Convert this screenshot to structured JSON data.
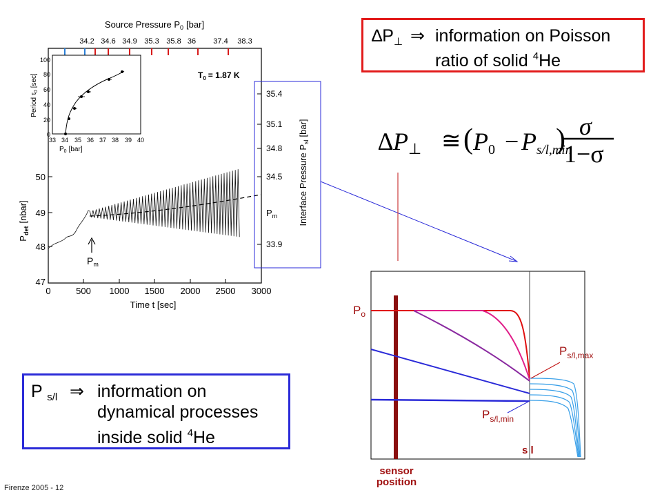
{
  "plot": {
    "top_title": "Source Pressure P",
    "top_title_sub": "0",
    "top_title_unit": "[bar]",
    "top_ticks": [
      "34.2",
      "34.6",
      "34.9",
      "35.3",
      "35.8",
      "36",
      "37.4",
      "38.3"
    ],
    "temperature_label": "T",
    "temperature_sub": "0",
    "temperature_value": "= 1.87 K",
    "y_label": "P",
    "y_label_sub": "det",
    "y_label_unit": "[nbar]",
    "y_ticks": [
      "50",
      "49",
      "48",
      "47"
    ],
    "x_label": "Time t  [sec]",
    "x_ticks": [
      "0",
      "500",
      "1000",
      "1500",
      "2000",
      "2500",
      "3000"
    ],
    "right_label": "Interface Pressure P",
    "right_label_sub": "sl",
    "right_label_unit": "[bar]",
    "right_ticks": [
      "35.4",
      "35.1",
      "34.8",
      "34.5",
      "33.9"
    ],
    "right_pm": "P",
    "right_pm_sub": "m",
    "arrow_label": "P",
    "arrow_label_sub": "m"
  },
  "inset": {
    "y_label": "Period  τ",
    "y_label_sub": "0",
    "y_label_unit": "[sec]",
    "y_ticks": [
      "100",
      "80",
      "60",
      "40",
      "20",
      "0"
    ],
    "x_label": "P",
    "x_label_sub": "0",
    "x_label_unit": "[bar]",
    "x_ticks": [
      "33",
      "34",
      "35",
      "36",
      "37",
      "38",
      "39",
      "40"
    ]
  },
  "top_box": {
    "symbol": "∆P",
    "symbol_sub": "⊥",
    "arrow": "⇒",
    "line1": "information on Poisson",
    "line2": "ratio of solid",
    "sup": "4",
    "tail": "He"
  },
  "bottom_box": {
    "symbol": "P",
    "symbol_sub": "s/l",
    "arrow": "⇒",
    "line1": "information on",
    "line2": "dynamical processes",
    "line3": "inside solid",
    "sup": "4",
    "tail": "He"
  },
  "formula": {
    "lhs": "∆P",
    "lhs_sub": "⊥",
    "approx": "≅",
    "paren_open": "(",
    "p0": "P",
    "p0_sub": "0",
    "minus": "−",
    "ps": "P",
    "ps_sub": "s/l,min",
    "paren_close": ")",
    "numerator": "σ",
    "denominator": "1−σ"
  },
  "diagram": {
    "p0_label": "P",
    "p0_sub": "o",
    "pmax_label": "P",
    "pmax_sub": "s/l,max",
    "pmin_label": "P",
    "pmin_sub": "s/l,min",
    "sl_label": "s l",
    "sensor_line1": "sensor",
    "sensor_line2": "position",
    "colors": {
      "red": "#e01010",
      "accent": "#a01010",
      "blue": "#2a2ad8"
    }
  },
  "footer": "Firenze  2005 - 12"
}
